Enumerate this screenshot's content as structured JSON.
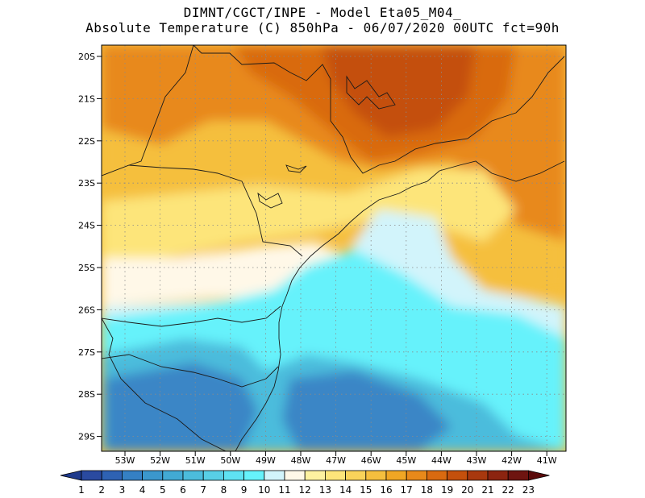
{
  "title_line1": "DIMNT/CGCT/INPE -  Model Eta05_M04_",
  "title_line2": "Absolute Temperature (C) 850hPa -  06/07/2020 00UTC fct=90h",
  "latitude_labels": [
    "20S",
    "21S",
    "22S",
    "23S",
    "24S",
    "25S",
    "26S",
    "27S",
    "28S",
    "29S"
  ],
  "longitude_labels": [
    "53W",
    "52W",
    "51W",
    "50W",
    "49W",
    "48W",
    "47W",
    "46W",
    "45W",
    "44W",
    "43W",
    "42W",
    "41W"
  ],
  "colorbar": {
    "labels": [
      "1",
      "2",
      "3",
      "4",
      "5",
      "6",
      "7",
      "8",
      "9",
      "10",
      "11",
      "12",
      "13",
      "14",
      "15",
      "16",
      "17",
      "18",
      "19",
      "20",
      "21",
      "22",
      "23"
    ],
    "colors": [
      "#2a4aa0",
      "#2e62b3",
      "#3580c4",
      "#3b97cc",
      "#42aad4",
      "#4cbcdc",
      "#58cfe6",
      "#5fe2f2",
      "#66f2fb",
      "#d2f4fb",
      "#fff8e8",
      "#fdf1a0",
      "#fde57a",
      "#f9d35a",
      "#f5bf3e",
      "#f0a624",
      "#e8891a",
      "#d96a10",
      "#c4500c",
      "#a8380e",
      "#8c2410",
      "#6e1410"
    ],
    "arrow_left_color": "#1f3a8c",
    "arrow_right_color": "#5a0a0a"
  },
  "field_colors": {
    "deep_blue": "#3a86c6",
    "mid_blue": "#4cbcdc",
    "cyan": "#66f2fb",
    "pale_blue": "#d2f4fb",
    "cream": "#fff8e8",
    "light_yellow": "#fde57a",
    "yellow": "#f5bf3e",
    "orange": "#e8891a",
    "dark_orange": "#d96a10",
    "red_brown": "#c4500c"
  }
}
